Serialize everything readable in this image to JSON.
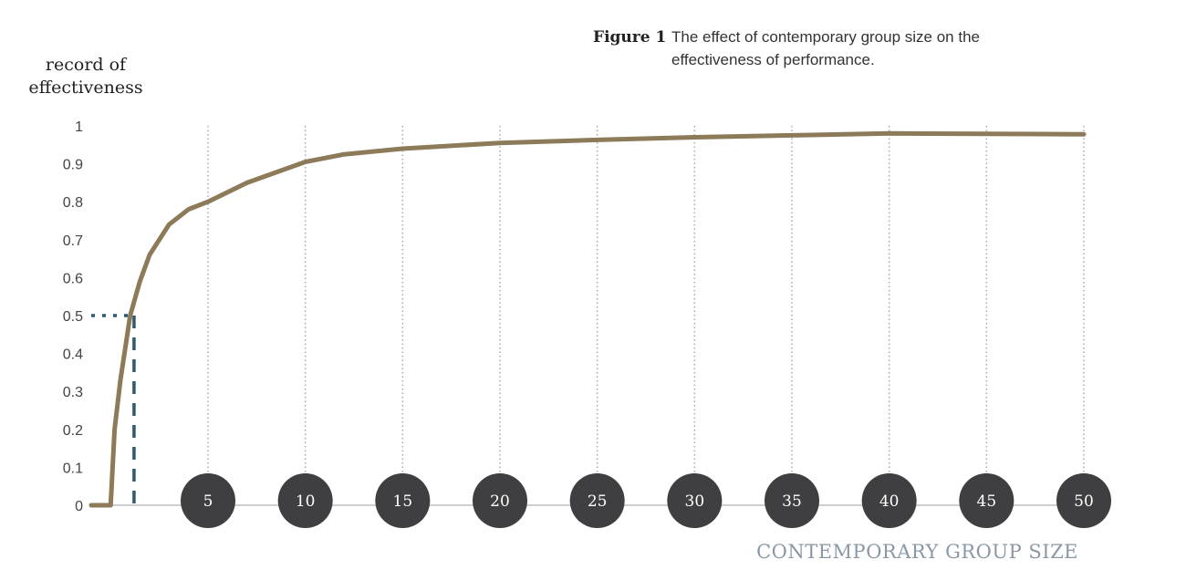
{
  "figure": {
    "label": "Figure 1",
    "title_lines": [
      "The effect of contemporary group size on the",
      "effectiveness of performance."
    ]
  },
  "chart_data": {
    "type": "line",
    "title": "The effect of contemporary group size on the effectiveness of performance.",
    "ylabel_lines": [
      "record of",
      "effectiveness"
    ],
    "xlabel": "CONTEMPORARY GROUP SIZE",
    "xlim": [
      -1,
      50
    ],
    "ylim": [
      0,
      1
    ],
    "x_ticks": [
      5,
      10,
      15,
      20,
      25,
      30,
      35,
      40,
      45,
      50
    ],
    "y_ticks": [
      0,
      0.1,
      0.2,
      0.3,
      0.4,
      0.5,
      0.6,
      0.7,
      0.8,
      0.9,
      1
    ],
    "y_tick_labels": [
      "0",
      "0.1",
      "0.2",
      "0.3",
      "0.4",
      "0.5",
      "0.6",
      "0.7",
      "0.8",
      "0.9",
      "1"
    ],
    "grid": "vertical dotted lines at x ticks",
    "series": [
      {
        "color": "#8c7a58",
        "x": [
          -1,
          0,
          0.2,
          0.5,
          1,
          1.5,
          2,
          3,
          4,
          5,
          7,
          10,
          12,
          15,
          20,
          25,
          30,
          35,
          40,
          45,
          50
        ],
        "y": [
          0,
          0,
          0.2,
          0.33,
          0.5,
          0.59,
          0.66,
          0.74,
          0.78,
          0.8,
          0.85,
          0.905,
          0.925,
          0.94,
          0.955,
          0.963,
          0.97,
          0.975,
          0.98,
          0.979,
          0.978
        ]
      }
    ],
    "reference": {
      "color": "#2f5872",
      "x": 1.2,
      "y": 0.5
    }
  }
}
